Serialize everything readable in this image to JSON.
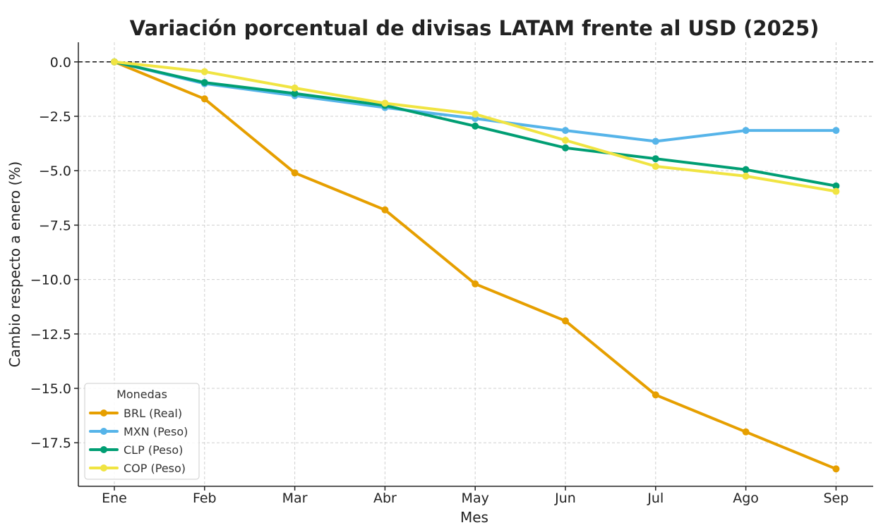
{
  "chart_data": {
    "type": "line",
    "title": "Variación porcentual de divisas LATAM frente al USD (2025)",
    "xlabel": "Mes",
    "ylabel": "Cambio respecto a enero (%)",
    "categories": [
      "Ene",
      "Feb",
      "Mar",
      "Abr",
      "May",
      "Jun",
      "Jul",
      "Ago",
      "Sep"
    ],
    "ylim": [
      -19.5,
      0.9
    ],
    "yticks": [
      0.0,
      -2.5,
      -5.0,
      -7.5,
      -10.0,
      -12.5,
      -15.0,
      -17.5
    ],
    "ytick_labels": [
      "0.0",
      "−2.5",
      "−5.0",
      "−7.5",
      "−10.0",
      "−12.5",
      "−15.0",
      "−17.5"
    ],
    "grid": true,
    "reference_line": 0,
    "legend": {
      "title": "Monedas",
      "position": "lower-left"
    },
    "series": [
      {
        "name": "BRL (Real)",
        "color": "#E69F00",
        "values": [
          0,
          -1.7,
          -5.1,
          -6.8,
          -10.2,
          -11.9,
          -15.3,
          -17.0,
          -18.7
        ]
      },
      {
        "name": "MXN (Peso)",
        "color": "#56B4E9",
        "values": [
          0,
          -1.0,
          -1.55,
          -2.1,
          -2.6,
          -3.15,
          -3.65,
          -3.15,
          -3.15
        ]
      },
      {
        "name": "CLP (Peso)",
        "color": "#009E73",
        "values": [
          0,
          -0.95,
          -1.45,
          -2.0,
          -2.95,
          -3.95,
          -4.45,
          -4.95,
          -5.7
        ]
      },
      {
        "name": "COP (Peso)",
        "color": "#F0E442",
        "values": [
          0,
          -0.45,
          -1.2,
          -1.9,
          -2.4,
          -3.6,
          -4.8,
          -5.25,
          -5.95
        ]
      }
    ]
  }
}
